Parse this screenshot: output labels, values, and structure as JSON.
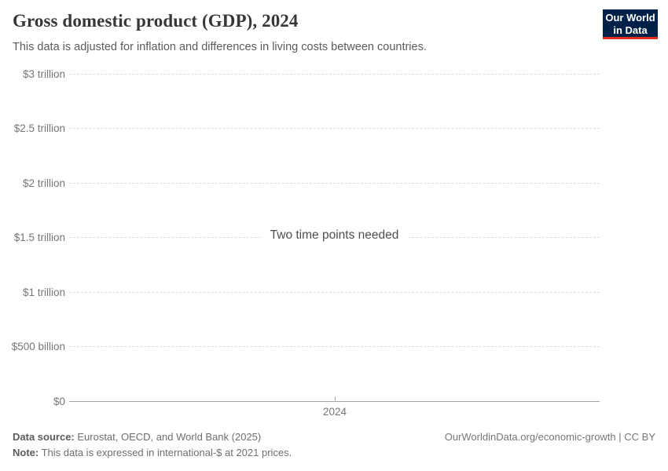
{
  "header": {
    "title": "Gross domestic product (GDP), 2024",
    "subtitle": "This data is adjusted for inflation and differences in living costs between countries.",
    "logo": {
      "line1": "Our World",
      "line2": "in Data",
      "bg_color": "#002147",
      "accent_color": "#e02c21"
    }
  },
  "chart_data": {
    "type": "line",
    "title": "Gross domestic product (GDP), 2024",
    "status_message": "Two time points needed",
    "series": [],
    "x_ticks": [
      "2024"
    ],
    "y_ticks": [
      {
        "label": "$3 trillion",
        "value_trillions": 3
      },
      {
        "label": "$2.5 trillion",
        "value_trillions": 2.5
      },
      {
        "label": "$2 trillion",
        "value_trillions": 2
      },
      {
        "label": "$1.5 trillion",
        "value_trillions": 1.5
      },
      {
        "label": "$1 trillion",
        "value_trillions": 1
      },
      {
        "label": "$500 billion",
        "value_trillions": 0.5
      },
      {
        "label": "$0",
        "value_trillions": 0
      }
    ],
    "ylim_trillions": [
      0,
      3
    ],
    "xlabel": "",
    "ylabel": "",
    "grid": true,
    "legend": "none",
    "gridline_color": "#dcdcdc",
    "axis_line_color": "#a3a3a3"
  },
  "footer": {
    "datasource_label": "Data source:",
    "datasource_text": " Eurostat, OECD, and World Bank (2025)",
    "note_label": "Note:",
    "note_text": " This data is expressed in international-$ at 2021 prices.",
    "link": "OurWorldinData.org/economic-growth | CC BY"
  }
}
